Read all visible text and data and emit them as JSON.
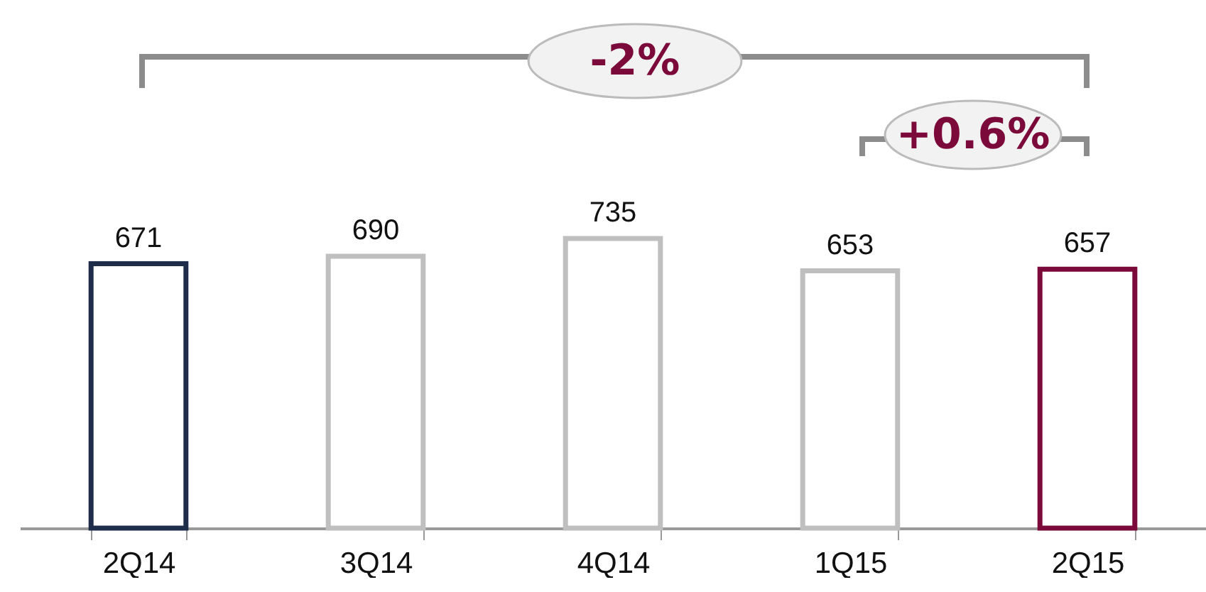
{
  "chart_data": {
    "type": "bar",
    "categories": [
      "2Q14",
      "3Q14",
      "4Q14",
      "1Q15",
      "2Q15"
    ],
    "values": [
      671,
      690,
      735,
      653,
      657
    ],
    "colors": [
      "#1f2d4a",
      "#bfbfbf",
      "#bfbfbf",
      "#bfbfbf",
      "#7b0a3a"
    ],
    "data_labels": true,
    "annotations": [
      "-2%",
      "+0.6%"
    ]
  }
}
